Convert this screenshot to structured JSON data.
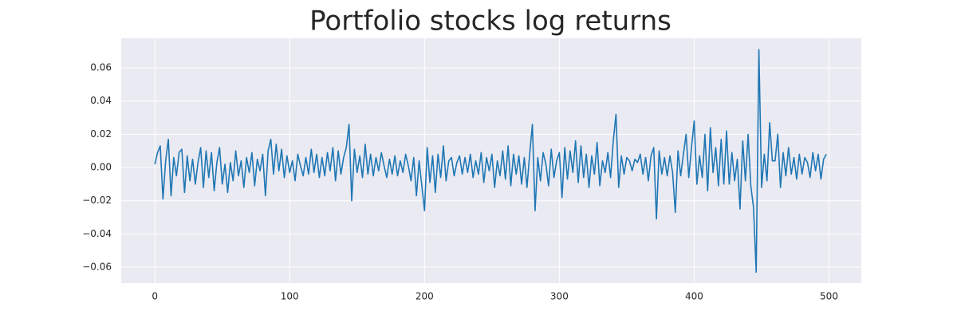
{
  "chart_data": {
    "type": "line",
    "title": "Portfolio stocks log returns",
    "x": [
      0,
      2,
      4,
      6,
      8,
      10,
      12,
      14,
      16,
      18,
      20,
      22,
      24,
      26,
      28,
      30,
      32,
      34,
      36,
      38,
      40,
      42,
      44,
      46,
      48,
      50,
      52,
      54,
      56,
      58,
      60,
      62,
      64,
      66,
      68,
      70,
      72,
      74,
      76,
      78,
      80,
      82,
      84,
      86,
      88,
      90,
      92,
      94,
      96,
      98,
      100,
      102,
      104,
      106,
      108,
      110,
      112,
      114,
      116,
      118,
      120,
      122,
      124,
      126,
      128,
      130,
      132,
      134,
      136,
      138,
      140,
      142,
      144,
      146,
      148,
      150,
      152,
      154,
      156,
      158,
      160,
      162,
      164,
      166,
      168,
      170,
      172,
      174,
      176,
      178,
      180,
      182,
      184,
      186,
      188,
      190,
      192,
      194,
      196,
      198,
      200,
      202,
      204,
      206,
      208,
      210,
      212,
      214,
      216,
      218,
      220,
      222,
      224,
      226,
      228,
      230,
      232,
      234,
      236,
      238,
      240,
      242,
      244,
      246,
      248,
      250,
      252,
      254,
      256,
      258,
      260,
      262,
      264,
      266,
      268,
      270,
      272,
      274,
      276,
      278,
      280,
      282,
      284,
      286,
      288,
      290,
      292,
      294,
      296,
      298,
      300,
      302,
      304,
      306,
      308,
      310,
      312,
      314,
      316,
      318,
      320,
      322,
      324,
      326,
      328,
      330,
      332,
      334,
      336,
      338,
      340,
      342,
      344,
      346,
      348,
      350,
      352,
      354,
      356,
      358,
      360,
      362,
      364,
      366,
      368,
      370,
      372,
      374,
      376,
      378,
      380,
      382,
      384,
      386,
      388,
      390,
      392,
      394,
      396,
      398,
      400,
      402,
      404,
      406,
      408,
      410,
      412,
      414,
      416,
      418,
      420,
      422,
      424,
      426,
      428,
      430,
      432,
      434,
      436,
      438,
      440,
      442,
      444,
      446,
      448,
      450,
      452,
      454,
      456,
      458,
      460,
      462,
      464,
      466,
      468,
      470,
      472,
      474,
      476,
      478,
      480,
      482,
      484,
      486,
      488,
      490,
      492,
      494,
      496,
      498
    ],
    "series": [
      {
        "color": "#1f77b4",
        "values": [
          0.002,
          0.009,
          0.013,
          -0.019,
          0.004,
          0.017,
          -0.017,
          0.006,
          -0.005,
          0.009,
          0.011,
          -0.015,
          0.007,
          -0.008,
          0.005,
          -0.01,
          0.003,
          0.012,
          -0.012,
          0.01,
          -0.006,
          0.009,
          -0.014,
          0.003,
          0.012,
          -0.01,
          0.002,
          -0.015,
          0.003,
          -0.008,
          0.01,
          -0.005,
          0.004,
          -0.012,
          0.006,
          -0.003,
          0.009,
          -0.011,
          0.005,
          -0.002,
          0.008,
          -0.017,
          0.01,
          0.017,
          -0.004,
          0.014,
          -0.002,
          0.011,
          -0.006,
          0.007,
          -0.003,
          0.004,
          -0.008,
          0.008,
          0.001,
          -0.005,
          0.006,
          -0.004,
          0.011,
          -0.003,
          0.008,
          -0.006,
          0.006,
          -0.005,
          0.009,
          -0.002,
          0.012,
          -0.008,
          0.01,
          -0.004,
          0.006,
          0.012,
          0.026,
          -0.02,
          0.011,
          -0.003,
          0.007,
          -0.006,
          0.014,
          -0.004,
          0.008,
          -0.005,
          0.006,
          -0.002,
          0.009,
          0.001,
          -0.006,
          0.005,
          -0.004,
          0.007,
          -0.005,
          0.004,
          -0.003,
          0.008,
          0.001,
          -0.008,
          0.006,
          -0.017,
          0.004,
          -0.011,
          -0.026,
          0.012,
          -0.009,
          0.007,
          -0.015,
          0.008,
          -0.006,
          0.013,
          -0.008,
          0.004,
          0.006,
          -0.005,
          0.003,
          0.007,
          -0.004,
          0.006,
          -0.003,
          0.008,
          -0.006,
          0.004,
          -0.004,
          0.009,
          -0.009,
          0.006,
          -0.002,
          0.008,
          -0.012,
          0.004,
          -0.005,
          0.01,
          -0.007,
          0.013,
          -0.011,
          0.008,
          -0.004,
          0.007,
          -0.01,
          0.006,
          -0.012,
          0.008,
          0.026,
          -0.026,
          0.006,
          -0.008,
          0.009,
          0.002,
          -0.011,
          0.011,
          -0.006,
          0.004,
          0.009,
          -0.018,
          0.012,
          -0.007,
          0.01,
          -0.003,
          0.016,
          -0.009,
          0.013,
          -0.006,
          0.008,
          -0.012,
          0.007,
          -0.004,
          0.015,
          -0.011,
          0.004,
          -0.003,
          0.009,
          -0.006,
          0.016,
          0.032,
          -0.012,
          0.007,
          -0.004,
          0.006,
          0.004,
          -0.002,
          0.005,
          0.003,
          0.008,
          -0.004,
          0.006,
          -0.008,
          0.007,
          0.012,
          -0.031,
          0.01,
          -0.004,
          0.006,
          -0.005,
          0.007,
          -0.003,
          -0.027,
          0.01,
          -0.005,
          0.008,
          0.02,
          -0.006,
          0.012,
          0.028,
          -0.01,
          0.007,
          -0.006,
          0.02,
          -0.014,
          0.024,
          -0.003,
          0.012,
          -0.011,
          0.017,
          -0.01,
          0.022,
          -0.01,
          0.009,
          -0.008,
          0.005,
          -0.025,
          0.016,
          -0.008,
          0.02,
          -0.011,
          -0.024,
          -0.063,
          0.071,
          -0.012,
          0.008,
          -0.008,
          0.027,
          0.004,
          0.004,
          0.02,
          -0.012,
          0.009,
          -0.005,
          0.012,
          -0.004,
          0.006,
          -0.007,
          0.008,
          -0.004,
          0.006,
          0.003,
          -0.006,
          0.009,
          -0.002,
          0.008,
          -0.007,
          0.005,
          0.008
        ]
      }
    ],
    "xlim": [
      -24.95,
      523.95
    ],
    "xticks": [
      0,
      100,
      200,
      300,
      400,
      500
    ],
    "ylim": [
      -0.0696,
      0.0778
    ],
    "yticks": [
      {
        "value": -0.06,
        "label": "−0.06"
      },
      {
        "value": -0.04,
        "label": "−0.04"
      },
      {
        "value": -0.02,
        "label": "−0.02"
      },
      {
        "value": 0,
        "label": "0.00"
      },
      0.02,
      0.04,
      0.06
    ],
    "grid": true
  }
}
